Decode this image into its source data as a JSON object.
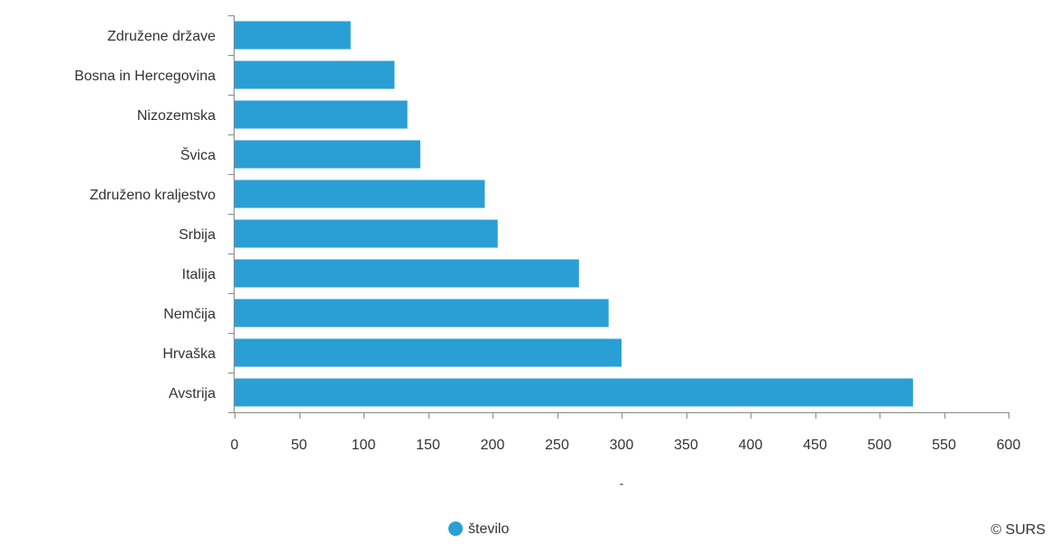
{
  "chart_data": {
    "type": "bar",
    "orientation": "horizontal",
    "categories": [
      "Združene države",
      "Bosna in Hercegovina",
      "Nizozemska",
      "Švica",
      "Združeno kraljestvo",
      "Srbija",
      "Italija",
      "Nemčija",
      "Hrvaška",
      "Avstrija"
    ],
    "series": [
      {
        "name": "število",
        "values": [
          90,
          124,
          134,
          144,
          194,
          204,
          267,
          290,
          300,
          526
        ]
      }
    ],
    "xlabel": "-",
    "xlim": [
      0,
      600
    ],
    "xticks": [
      0,
      50,
      100,
      150,
      200,
      250,
      300,
      350,
      400,
      450,
      500,
      550,
      600
    ],
    "grid": false,
    "legend": "bottom-center",
    "bar_color": "#2a9fd6",
    "credit": "© SURS"
  }
}
